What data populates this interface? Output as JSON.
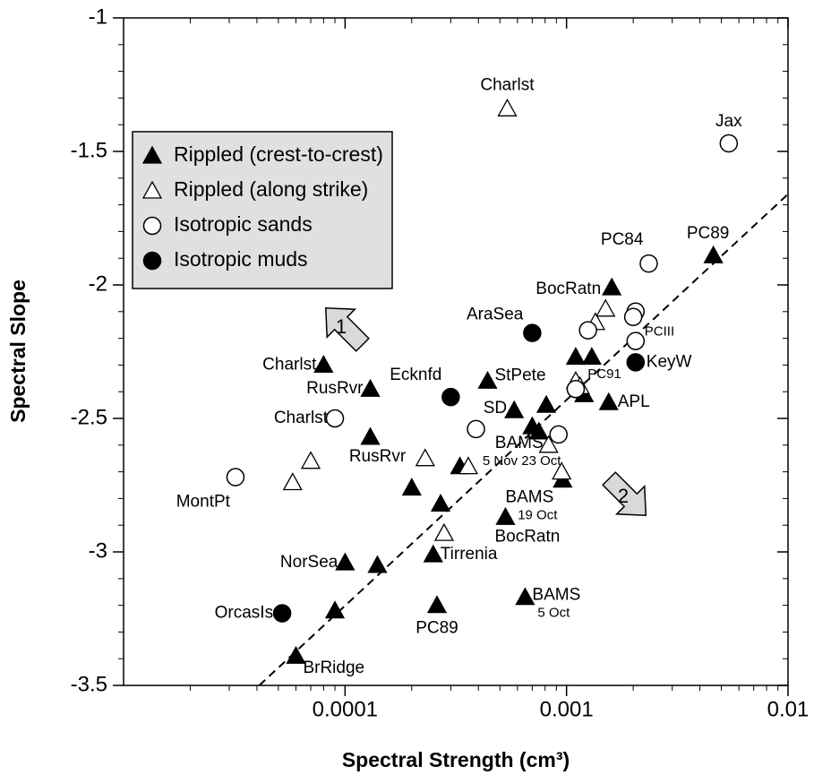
{
  "chart_data": {
    "type": "scatter",
    "x_label": "Spectral Strength (cm³)",
    "y_label": "Spectral Slope",
    "xlog": true,
    "xlim": [
      1e-05,
      0.01
    ],
    "ylim": [
      -3.5,
      -1
    ],
    "xticks": [
      0.0001,
      0.001,
      0.01
    ],
    "xminor": [
      2e-05,
      3e-05,
      4e-05,
      5e-05,
      6e-05,
      7e-05,
      8e-05,
      9e-05,
      0.0002,
      0.0003,
      0.0004,
      0.0005,
      0.0006,
      0.0007,
      0.0008,
      0.0009,
      0.002,
      0.003,
      0.004,
      0.005,
      0.006,
      0.007,
      0.008,
      0.009
    ],
    "yticks": [
      -3.5,
      -3,
      -2.5,
      -2,
      -1.5,
      -1
    ],
    "yminor": [
      -3.4,
      -3.3,
      -3.2,
      -3.1,
      -2.9,
      -2.8,
      -2.7,
      -2.6,
      -2.4,
      -2.3,
      -2.2,
      -2.1,
      -1.9,
      -1.8,
      -1.7,
      -1.6,
      -1.4,
      -1.3,
      -1.2,
      -1.1
    ],
    "legend": "upper left",
    "series": [
      {
        "name": "Rippled (crest-to-crest)",
        "marker": "triangle",
        "filled": true,
        "color": "#000000",
        "x": [
          8e-05,
          0.00013,
          0.00013,
          0.00044,
          0.00058,
          0.00081,
          0.0007,
          0.00075,
          0.0011,
          0.0013,
          0.0012,
          0.00155,
          0.0016,
          0.0046,
          0.00033,
          0.0002,
          0.00027,
          0.00096,
          0.00053,
          0.0001,
          0.00014,
          0.00025,
          0.00065,
          0.00026,
          9e-05,
          6e-05
        ],
        "y": [
          -2.3,
          -2.39,
          -2.57,
          -2.36,
          -2.47,
          -2.45,
          -2.53,
          -2.55,
          -2.27,
          -2.27,
          -2.41,
          -2.44,
          -2.01,
          -1.89,
          -2.68,
          -2.76,
          -2.82,
          -2.73,
          -2.87,
          -3.04,
          -3.05,
          -3.01,
          -3.17,
          -3.2,
          -3.22,
          -3.39
        ],
        "labels": [
          "Charlst",
          "RusRvr",
          "RusRvr",
          "StPete",
          "SD",
          null,
          null,
          null,
          null,
          null,
          "PC91",
          "APL",
          "BocRatn",
          "PC89",
          null,
          null,
          null,
          [
            "BAMS",
            "19 Oct"
          ],
          "BocRatn",
          "NorSea",
          null,
          "Tirrenia",
          [
            "BAMS",
            "5 Oct"
          ],
          "PC89",
          null,
          "BrRidge"
        ]
      },
      {
        "name": "Rippled (along strike)",
        "marker": "triangle",
        "filled": false,
        "color": "#000000",
        "x": [
          0.00054,
          7e-05,
          5.8e-05,
          0.00023,
          0.00036,
          0.00028,
          0.00083,
          0.00095,
          0.0011,
          0.00115,
          0.00135,
          0.0015
        ],
        "y": [
          -1.34,
          -2.66,
          -2.74,
          -2.65,
          -2.68,
          -2.93,
          -2.6,
          -2.7,
          -2.36,
          -2.38,
          -2.14,
          -2.09
        ],
        "labels": [
          "Charlst",
          null,
          null,
          null,
          null,
          null,
          [
            "BAMS",
            "5 Nov 23 Oct"
          ],
          null,
          null,
          null,
          null,
          null
        ]
      },
      {
        "name": "Isotropic sands",
        "marker": "circle",
        "filled": false,
        "color": "#000000",
        "x": [
          0.0054,
          0.00235,
          0.00205,
          0.002,
          0.00125,
          0.00205,
          0.0011,
          0.00092,
          0.00039,
          9e-05,
          3.2e-05
        ],
        "y": [
          -1.47,
          -1.92,
          -2.1,
          -2.12,
          -2.17,
          -2.21,
          -2.39,
          -2.56,
          -2.54,
          -2.5,
          -2.72
        ],
        "labels": [
          "Jax",
          "PC84",
          null,
          null,
          null,
          "PCIII",
          null,
          null,
          null,
          "Charlst",
          "MontPt"
        ]
      },
      {
        "name": "Isotropic muds",
        "marker": "circle",
        "filled": true,
        "color": "#000000",
        "x": [
          0.0007,
          0.00205,
          0.0003,
          5.2e-05
        ],
        "y": [
          -2.18,
          -2.29,
          -2.42,
          -3.23
        ],
        "labels": [
          "AraSea",
          "KeyW",
          "Ecknfd",
          "OrcasIs"
        ]
      }
    ],
    "fit": {
      "x": [
        4.1e-05,
        0.01
      ],
      "y": [
        -3.5,
        -1.66
      ]
    },
    "annotations": [
      "1",
      "2"
    ]
  }
}
